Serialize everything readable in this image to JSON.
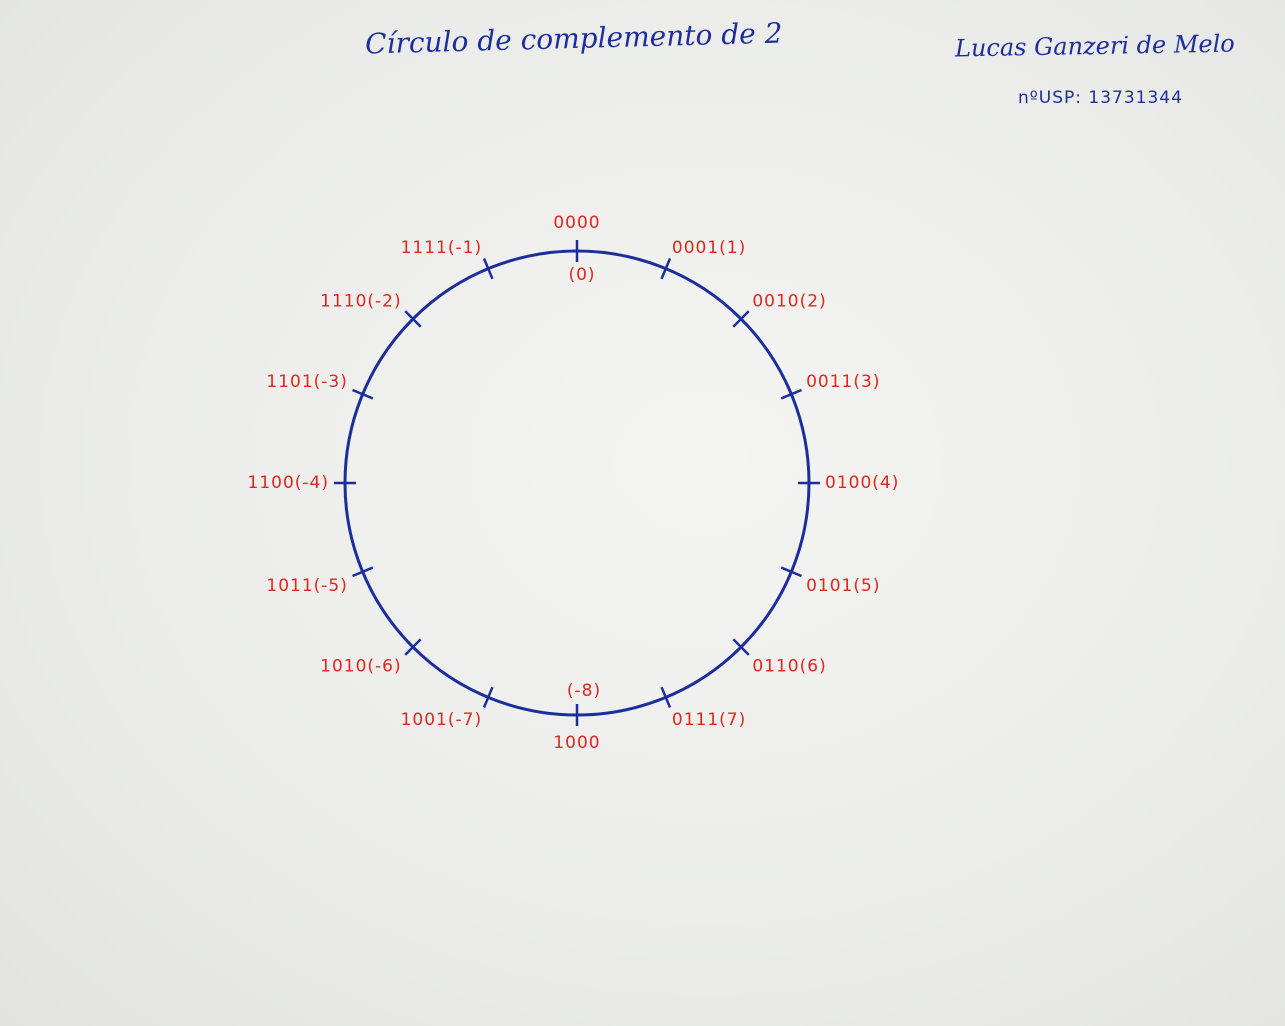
{
  "header": {
    "title": "Círculo de complemento de 2",
    "author": "Lucas Ganzeri de Melo",
    "student_id": "nºUSP: 13731344"
  },
  "colors": {
    "ink_blue": "#1d2e9a",
    "ink_red": "#e0261f",
    "paper": "#ecedeb"
  },
  "circle": {
    "labels": [
      {
        "angle": 0,
        "text": "0000",
        "extra": "(0)"
      },
      {
        "angle": 22.5,
        "text": "0001(1)"
      },
      {
        "angle": 45,
        "text": "0010(2)"
      },
      {
        "angle": 67.5,
        "text": "0011(3)"
      },
      {
        "angle": 90,
        "text": "0100(4)"
      },
      {
        "angle": 112.5,
        "text": "0101(5)"
      },
      {
        "angle": 135,
        "text": "0110(6)"
      },
      {
        "angle": 157.5,
        "text": "0111(7)"
      },
      {
        "angle": 180,
        "text": "1000",
        "extra": "(-8)"
      },
      {
        "angle": 202.5,
        "text": "1001(-7)"
      },
      {
        "angle": 225,
        "text": "1010(-6)"
      },
      {
        "angle": 247.5,
        "text": "1011(-5)"
      },
      {
        "angle": 270,
        "text": "1100(-4)"
      },
      {
        "angle": 292.5,
        "text": "1101(-3)"
      },
      {
        "angle": 315,
        "text": "1110(-2)"
      },
      {
        "angle": 337.5,
        "text": "1111(-1)"
      }
    ]
  }
}
